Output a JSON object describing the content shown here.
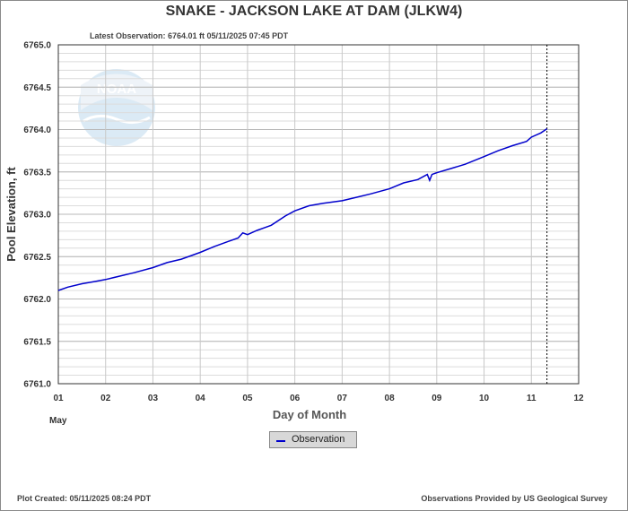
{
  "header": {
    "title": "SNAKE - JACKSON LAKE AT DAM  (JLKW4)",
    "latest_observation": "Latest Observation: 6764.01 ft 05/11/2025 07:45 PDT"
  },
  "footer": {
    "plot_created": "Plot Created: 05/11/2025 08:24 PDT",
    "provider": "Observations Provided by US Geological Survey"
  },
  "logo": {
    "text": "NOAA"
  },
  "colors": {
    "series": "#0000cc",
    "grid": "#c8c8c8",
    "axis": "#333333",
    "logo": "#dbeaf5"
  },
  "chart_data": {
    "type": "line",
    "title": "SNAKE - JACKSON LAKE AT DAM  (JLKW4)",
    "xlabel": "Day of Month",
    "ylabel": "Pool Elevation, ft",
    "x_sublabel": "May",
    "xlim": [
      1,
      12
    ],
    "ylim": [
      6761.0,
      6765.0
    ],
    "x_ticks": [
      1,
      2,
      3,
      4,
      5,
      6,
      7,
      8,
      9,
      10,
      11,
      12
    ],
    "x_tick_labels": [
      "01",
      "02",
      "03",
      "04",
      "05",
      "06",
      "07",
      "08",
      "09",
      "10",
      "11",
      "12"
    ],
    "y_ticks": [
      6761.0,
      6761.5,
      6762.0,
      6762.5,
      6763.0,
      6763.5,
      6764.0,
      6764.5,
      6765.0
    ],
    "y_tick_labels": [
      "6761.0",
      "6761.5",
      "6762.0",
      "6762.5",
      "6763.0",
      "6763.5",
      "6764.0",
      "6764.5",
      "6765.0"
    ],
    "grid": true,
    "current_time_marker": 11.33,
    "legend": [
      "Observation"
    ],
    "series": [
      {
        "name": "Observation",
        "x": [
          1.0,
          1.2,
          1.5,
          1.8,
          2.0,
          2.3,
          2.6,
          3.0,
          3.3,
          3.6,
          4.0,
          4.3,
          4.6,
          4.8,
          4.9,
          5.0,
          5.2,
          5.5,
          5.8,
          6.0,
          6.3,
          6.6,
          7.0,
          7.3,
          7.6,
          8.0,
          8.3,
          8.6,
          8.8,
          8.85,
          8.9,
          9.0,
          9.3,
          9.6,
          10.0,
          10.3,
          10.6,
          10.9,
          11.0,
          11.2,
          11.33
        ],
        "y": [
          6762.1,
          6762.14,
          6762.18,
          6762.21,
          6762.23,
          6762.27,
          6762.31,
          6762.37,
          6762.43,
          6762.47,
          6762.55,
          6762.62,
          6762.68,
          6762.72,
          6762.78,
          6762.76,
          6762.81,
          6762.87,
          6762.98,
          6763.04,
          6763.1,
          6763.13,
          6763.16,
          6763.2,
          6763.24,
          6763.3,
          6763.37,
          6763.41,
          6763.47,
          6763.4,
          6763.47,
          6763.49,
          6763.54,
          6763.59,
          6763.68,
          6763.75,
          6763.81,
          6763.86,
          6763.91,
          6763.96,
          6764.01
        ]
      }
    ]
  }
}
